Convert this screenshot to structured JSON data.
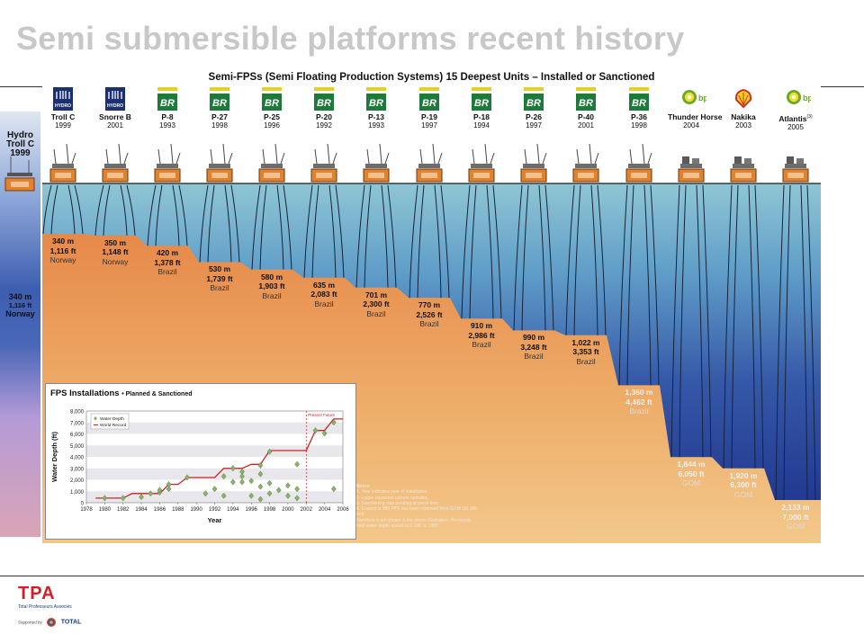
{
  "slide": {
    "title": "Semi submersible platforms recent history"
  },
  "side_panel": {
    "platform": {
      "operator": "Hydro",
      "name": "Troll C",
      "year": "1999"
    },
    "depth_m": "340 m",
    "depth_ft": "1,116 ft",
    "region": "Norway"
  },
  "figure": {
    "title": "Semi-FPSs (Semi Floating Production Systems) 15 Deepest Units – Installed or Sanctioned",
    "platforms": [
      {
        "name": "Troll C",
        "year": "1999",
        "operator": "Hydro",
        "logo": "hydro-logo",
        "depth_m": "340 m",
        "depth_ft": "1,116 ft",
        "region": "Norway"
      },
      {
        "name": "Snorre B",
        "year": "2001",
        "operator": "Hydro",
        "logo": "hydro-logo",
        "depth_m": "350 m",
        "depth_ft": "1,148 ft",
        "region": "Norway"
      },
      {
        "name": "P-8",
        "year": "1993",
        "operator": "Petrobras",
        "logo": "petrobras-logo",
        "depth_m": "420 m",
        "depth_ft": "1,378 ft",
        "region": "Brazil"
      },
      {
        "name": "P-27",
        "year": "1998",
        "operator": "Petrobras",
        "logo": "petrobras-logo",
        "depth_m": "530 m",
        "depth_ft": "1,739 ft",
        "region": "Brazil"
      },
      {
        "name": "P-25",
        "year": "1996",
        "operator": "Petrobras",
        "logo": "petrobras-logo",
        "depth_m": "580 m",
        "depth_ft": "1,903 ft",
        "region": "Brazil"
      },
      {
        "name": "P-20",
        "year": "1992",
        "operator": "Petrobras",
        "logo": "petrobras-logo",
        "depth_m": "635 m",
        "depth_ft": "2,083 ft",
        "region": "Brazil"
      },
      {
        "name": "P-13",
        "year": "1993",
        "operator": "Petrobras",
        "logo": "petrobras-logo",
        "depth_m": "701 m",
        "depth_ft": "2,300 ft",
        "region": "Brazil"
      },
      {
        "name": "P-19",
        "year": "1997",
        "operator": "Petrobras",
        "logo": "petrobras-logo",
        "depth_m": "770 m",
        "depth_ft": "2,526 ft",
        "region": "Brazil"
      },
      {
        "name": "P-18",
        "year": "1994",
        "operator": "Petrobras",
        "logo": "petrobras-logo",
        "depth_m": "910 m",
        "depth_ft": "2,986 ft",
        "region": "Brazil"
      },
      {
        "name": "P-26",
        "year": "1997",
        "operator": "Petrobras",
        "logo": "petrobras-logo",
        "depth_m": "990 m",
        "depth_ft": "3,248 ft",
        "region": "Brazil"
      },
      {
        "name": "P-40",
        "year": "2001",
        "operator": "Petrobras",
        "logo": "petrobras-logo",
        "depth_m": "1,022 m",
        "depth_ft": "3,353 ft",
        "region": "Brazil"
      },
      {
        "name": "P-36",
        "year": "1998",
        "operator": "Petrobras",
        "logo": "petrobras-logo",
        "depth_m": "1,360 m",
        "depth_ft": "4,462 ft",
        "region": "Brazil"
      },
      {
        "name": "Thunder Horse",
        "year": "2004",
        "operator": "bp",
        "logo": "bp-logo",
        "depth_m": "1,844 m",
        "depth_ft": "6,050 ft",
        "region": "GOM"
      },
      {
        "name": "Nakika",
        "year": "2003",
        "operator": "Shell",
        "logo": "shell-logo",
        "depth_m": "1,920 m",
        "depth_ft": "6,300 ft",
        "region": "GOM"
      },
      {
        "name": "Atlantis",
        "year": "2005",
        "operator": "bp",
        "logo": "bp-logo",
        "depth_m": "2,133 m",
        "depth_ft": "7,000 ft",
        "region": "GOM"
      }
    ],
    "logo_text": {
      "hydro": "HYDRO",
      "petrobras": "BR",
      "bp": "bp",
      "atlantis_footnote": "(3)"
    },
    "notes": [
      "Notes:",
      "1. Year indicates year of installation.",
      "2. Logos represent current operator.",
      "3. Sanctioning was pending at press time.",
      "4. Enserch's 088 FPS has been removed from GOM GB 388 and",
      "   therefore is not shown in the above illustration. Previously",
      "   held water depth record of 2,186' in 1995."
    ],
    "colors": {
      "seabed": "#e9a35a",
      "water_top": "#8fc6d4",
      "water_deep": "#1a2e8a",
      "hull": "#e0822e",
      "world_record_line": "#cc2222",
      "data_marker": "#8ab06a"
    }
  },
  "chart_data": {
    "type": "scatter",
    "title": "FPS Installations",
    "subtitle": "• Planned & Sanctioned",
    "xlabel": "Year",
    "ylabel": "Water Depth (ft)",
    "xlim": [
      1978,
      2006
    ],
    "ylim": [
      0,
      8000
    ],
    "x_ticks": [
      1978,
      1980,
      1982,
      1984,
      1986,
      1988,
      1990,
      1992,
      1994,
      1996,
      1998,
      2000,
      2002,
      2004,
      2006
    ],
    "y_ticks": [
      0,
      1000,
      2000,
      3000,
      4000,
      5000,
      6000,
      7000,
      8000
    ],
    "grid": "horizontal bands",
    "legend": {
      "placement": "top-left",
      "entries": [
        "Water Depth",
        "World Record"
      ]
    },
    "annotation": {
      "text": "Present Future",
      "x": 2002
    },
    "series": [
      {
        "name": "Water Depth",
        "points": [
          [
            1980,
            400
          ],
          [
            1982,
            400
          ],
          [
            1984,
            500
          ],
          [
            1985,
            800
          ],
          [
            1986,
            900
          ],
          [
            1986,
            1100
          ],
          [
            1987,
            1200
          ],
          [
            1987,
            1600
          ],
          [
            1989,
            2200
          ],
          [
            1991,
            800
          ],
          [
            1992,
            1200
          ],
          [
            1993,
            600
          ],
          [
            1993,
            2300
          ],
          [
            1994,
            1800
          ],
          [
            1994,
            3000
          ],
          [
            1995,
            2700
          ],
          [
            1995,
            1800
          ],
          [
            1995,
            2300
          ],
          [
            1996,
            1900
          ],
          [
            1996,
            600
          ],
          [
            1997,
            300
          ],
          [
            1997,
            1400
          ],
          [
            1997,
            2500
          ],
          [
            1997,
            3250
          ],
          [
            1998,
            800
          ],
          [
            1998,
            1700
          ],
          [
            1998,
            4450
          ],
          [
            1999,
            1100
          ],
          [
            2000,
            1500
          ],
          [
            2000,
            600
          ],
          [
            2001,
            400
          ],
          [
            2001,
            3350
          ],
          [
            2001,
            1200
          ],
          [
            2003,
            6300
          ],
          [
            2004,
            6050
          ],
          [
            2005,
            7000
          ],
          [
            2005,
            1200
          ]
        ]
      },
      {
        "name": "World Record",
        "points": [
          [
            1979,
            400
          ],
          [
            1982,
            400
          ],
          [
            1983,
            800
          ],
          [
            1986,
            800
          ],
          [
            1987,
            1600
          ],
          [
            1988,
            1600
          ],
          [
            1989,
            2200
          ],
          [
            1992,
            2200
          ],
          [
            1993,
            3000
          ],
          [
            1995,
            3000
          ],
          [
            1996,
            3350
          ],
          [
            1997,
            3350
          ],
          [
            1998,
            4550
          ],
          [
            2001,
            4550
          ],
          [
            2002,
            4550
          ],
          [
            2003,
            6300
          ],
          [
            2004,
            6300
          ],
          [
            2005,
            7300
          ],
          [
            2006,
            7300
          ]
        ]
      }
    ]
  },
  "footer": {
    "brand": "TPA",
    "brand_sub": "Total Professeurs Associés",
    "supported_by": "Supported by",
    "sponsor": "TOTAL"
  }
}
